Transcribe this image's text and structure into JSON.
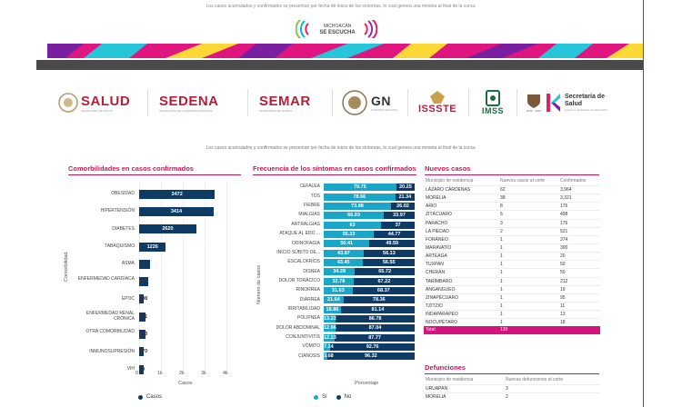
{
  "top_note": "Los casos acumulados y confirmados se presentan por fecha de inicio de los síntomas, lo cual genera una meseta al final de la curva.",
  "brand": {
    "line1": "MICHOACÁN",
    "line2": "SE ESCUCHA"
  },
  "colors": {
    "accent": "#c2185b",
    "bar_primary": "#0d3b66",
    "bar_secondary": "#1aa6c8",
    "institution_red": "#b51f3a",
    "total_row": "#d4137f"
  },
  "institutions": [
    {
      "name": "SALUD",
      "sub": "SECRETARÍA DE SALUD"
    },
    {
      "name": "SEDENA",
      "sub": "SECRETARÍA DE LA DEFENSA NACIONAL"
    },
    {
      "name": "SEMAR",
      "sub": "SECRETARÍA DE MARINA"
    },
    {
      "name": "GN",
      "sub": "GUARDIA NACIONAL"
    },
    {
      "name": "ISSSTE",
      "sub": ""
    },
    {
      "name": "IMSS",
      "sub": ""
    },
    {
      "name": "Secretaría de Salud",
      "sub": "Gobierno del Estado de Michoacán",
      "year": "2015 · 2021"
    }
  ],
  "subtitle": "Los casos acumulados y confirmados se presentan por fecha de inicio de los síntomas, lo cual genera una meseta al final de la curva.",
  "comorbilidades": {
    "title": "Comorbilidades en casos confirmados",
    "ylabel": "Comorbilidad",
    "xlabel": "Casos",
    "legend": "Casos",
    "ticks": [
      "0",
      "1k",
      "2k",
      "3k",
      "4k"
    ]
  },
  "sintomas": {
    "title": "Frecuencia de los síntomas en casos confirmados",
    "ylabel": "Número de casos",
    "xlabel": "Porcentaje",
    "legend_si": "Sí",
    "legend_no": "No"
  },
  "nuevos": {
    "title": "Nuevos casos",
    "headers": [
      "Municipio de residencia",
      "Nuevos casos al corte",
      "Confirmados"
    ],
    "rows": [
      [
        "LÁZARO CÁRDENAS",
        "62",
        "3,964"
      ],
      [
        "MORELIA",
        "38",
        "3,321"
      ],
      [
        "ARIO",
        "8",
        "176"
      ],
      [
        "ZITÁCUARO",
        "6",
        "498"
      ],
      [
        "PARACHO",
        "3",
        "176"
      ],
      [
        "LA PIEDAD",
        "2",
        "521"
      ],
      [
        "FORÁNEO",
        "1",
        "374"
      ],
      [
        "MARAVATÍO",
        "1",
        "300"
      ],
      [
        "ARTEAGA",
        "1",
        "20"
      ],
      [
        "TUXPAN",
        "1",
        "50"
      ],
      [
        "CHERÁN",
        "1",
        "50"
      ],
      [
        "TARÍMBARO",
        "1",
        "212"
      ],
      [
        "ANGANGUEO",
        "1",
        "19"
      ],
      [
        "ZINAPÉCUARO",
        "1",
        "95"
      ],
      [
        "TZITZIO",
        "1",
        "11"
      ],
      [
        "INDAPARAPEO",
        "1",
        "13"
      ],
      [
        "NOCUPÉTARO",
        "1",
        "18"
      ]
    ],
    "total": [
      "Total",
      "130",
      ""
    ]
  },
  "defunciones": {
    "title": "Defunciones",
    "headers": [
      "Municipio de residencia",
      "Nuevas defunciones al corte"
    ],
    "rows": [
      [
        "URUAPAN",
        "3"
      ],
      [
        "MORELIA",
        "2"
      ]
    ]
  },
  "chart_data": [
    {
      "type": "bar",
      "orientation": "horizontal",
      "title": "Comorbilidades en casos confirmados",
      "xlabel": "Casos",
      "ylabel": "Comorbilidad",
      "xlim": [
        0,
        4000
      ],
      "legend": "bottom-left",
      "categories": [
        "OBESIDAD",
        "HIPERTENSIÓN",
        "DIABETES",
        "TABAQUISMO",
        "ASMA",
        "ENFERMEDAD CARDÍACA",
        "EPOC",
        "ENFERMEDAD RENAL CRÓNICA",
        "OTRA COMORBILIDAD",
        "INMUNOSUPRESIÓN",
        "VIH"
      ],
      "series": [
        {
          "name": "Casos",
          "values": [
            3472,
            3414,
            2620,
            1226,
            519,
            400,
            198,
            301,
            283,
            170,
            60
          ]
        }
      ],
      "value_labels": [
        "3472",
        "3414",
        "2620",
        "1226",
        "519",
        "400",
        "198",
        "301",
        "283",
        "170",
        "60"
      ]
    },
    {
      "type": "bar",
      "orientation": "horizontal",
      "stacked": true,
      "title": "Frecuencia de los síntomas en casos confirmados",
      "xlabel": "Porcentaje",
      "ylabel": "Número de casos",
      "xlim": [
        0,
        100
      ],
      "legend": "bottom-center",
      "categories": [
        "CEFALEA",
        "TOS",
        "FIEBRE",
        "MIALGIAS",
        "ARTRALGIAS",
        "ATAQUE AL EDO ...",
        "ODINOFAGIA",
        "INICIO SÚBITO DE...",
        "ESCALOFRÍOS",
        "DISNEA",
        "DOLOR TORÁCICO",
        "RINORREA",
        "DIARREA",
        "IRRITABILIDAD",
        "POLIPNEA",
        "DOLOR ABDOMINAL",
        "CONJUNTIVITIS",
        "VÓMITO",
        "CIANOSIS"
      ],
      "series": [
        {
          "name": "Sí",
          "values": [
            79.75,
            78.66,
            73.98,
            66.03,
            63,
            55.23,
            50.41,
            43.87,
            43.45,
            34.28,
            32.78,
            31.63,
            21.64,
            18.86,
            13.22,
            12.96,
            12.23,
            7.24,
            3.68
          ]
        },
        {
          "name": "No",
          "values": [
            20.25,
            21.34,
            26.02,
            33.97,
            37,
            44.77,
            49.59,
            56.13,
            56.55,
            65.72,
            67.22,
            68.37,
            78.36,
            81.14,
            86.78,
            87.04,
            87.77,
            92.76,
            96.32
          ]
        }
      ],
      "si_labels": [
        "79.75",
        "78.66",
        "73.98",
        "66.03",
        "63",
        "55.23",
        "50.41",
        "43.87",
        "43.45",
        "34.28",
        "32.78",
        "31.63",
        "21.64",
        "18.86",
        "13.22",
        "12.96",
        "12.23",
        "7.24",
        "3.68"
      ],
      "no_labels": [
        "20.25",
        "21.34",
        "26.02",
        "33.97",
        "37",
        "44.77",
        "49.59",
        "56.13",
        "56.55",
        "65.72",
        "67.22",
        "68.37",
        "78.36",
        "81.14",
        "86.78",
        "87.04",
        "87.77",
        "92.76",
        "96.32"
      ]
    }
  ]
}
